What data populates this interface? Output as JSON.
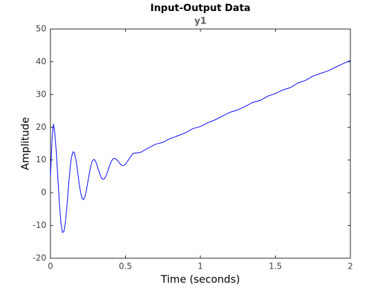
{
  "chart_data": {
    "type": "line",
    "title": "Input-Output Data",
    "subtitle": "y1",
    "xlabel": "Time (seconds)",
    "ylabel": "Amplitude",
    "x": [
      0,
      0.01,
      0.02,
      0.03,
      0.04,
      0.05,
      0.06,
      0.07,
      0.08,
      0.09,
      0.1,
      0.11,
      0.12,
      0.13,
      0.14,
      0.15,
      0.16,
      0.17,
      0.18,
      0.19,
      0.2,
      0.21,
      0.22,
      0.23,
      0.24,
      0.25,
      0.26,
      0.27,
      0.28,
      0.29,
      0.3,
      0.31,
      0.32,
      0.33,
      0.34,
      0.35,
      0.36,
      0.37,
      0.38,
      0.39,
      0.4,
      0.41,
      0.42,
      0.43,
      0.44,
      0.45,
      0.46,
      0.47,
      0.48,
      0.49,
      0.5,
      0.55,
      0.6,
      0.65,
      0.7,
      0.75,
      0.8,
      0.85,
      0.9,
      0.95,
      1,
      1.05,
      1.1,
      1.15,
      1.2,
      1.25,
      1.3,
      1.35,
      1.4,
      1.45,
      1.5,
      1.55,
      1.6,
      1.65,
      1.7,
      1.75,
      1.8,
      1.85,
      1.9,
      1.95,
      2
    ],
    "series": [
      {
        "name": "y1",
        "color": "#0000ff",
        "values": [
          5,
          16,
          21.0,
          18.0,
          11.8,
          4.0,
          -3.5,
          -9.2,
          -12.1,
          -11.9,
          -8.9,
          -4.0,
          1.7,
          7.0,
          10.8,
          12.5,
          12.2,
          10.1,
          6.9,
          3.3,
          0.3,
          -1.6,
          -2.1,
          -1.2,
          0.8,
          3.4,
          6.1,
          8.3,
          9.8,
          10.2,
          9.7,
          8.5,
          7.0,
          5.6,
          4.5,
          4.1,
          4.3,
          5.1,
          6.3,
          7.7,
          8.9,
          9.9,
          10.4,
          10.5,
          10.2,
          9.7,
          9.1,
          8.6,
          8.3,
          8.4,
          8.7,
          12.0,
          12.3,
          13.6,
          14.8,
          15.4,
          16.6,
          17.4,
          18.3,
          19.6,
          20.2,
          21.4,
          22.3,
          23.5,
          24.6,
          25.3,
          26.4,
          27.6,
          28.2,
          29.5,
          30.3,
          31.4,
          32.1,
          33.5,
          34.3,
          35.6,
          36.4,
          37.2,
          38.3,
          39.4,
          40.4
        ]
      }
    ],
    "xlim": [
      0,
      2
    ],
    "xticks": [
      0,
      0.5,
      1,
      1.5,
      2
    ],
    "ylim": [
      -20,
      50
    ],
    "yticks": [
      -20,
      -10,
      0,
      10,
      20,
      30,
      40,
      50
    ],
    "grid": false
  }
}
